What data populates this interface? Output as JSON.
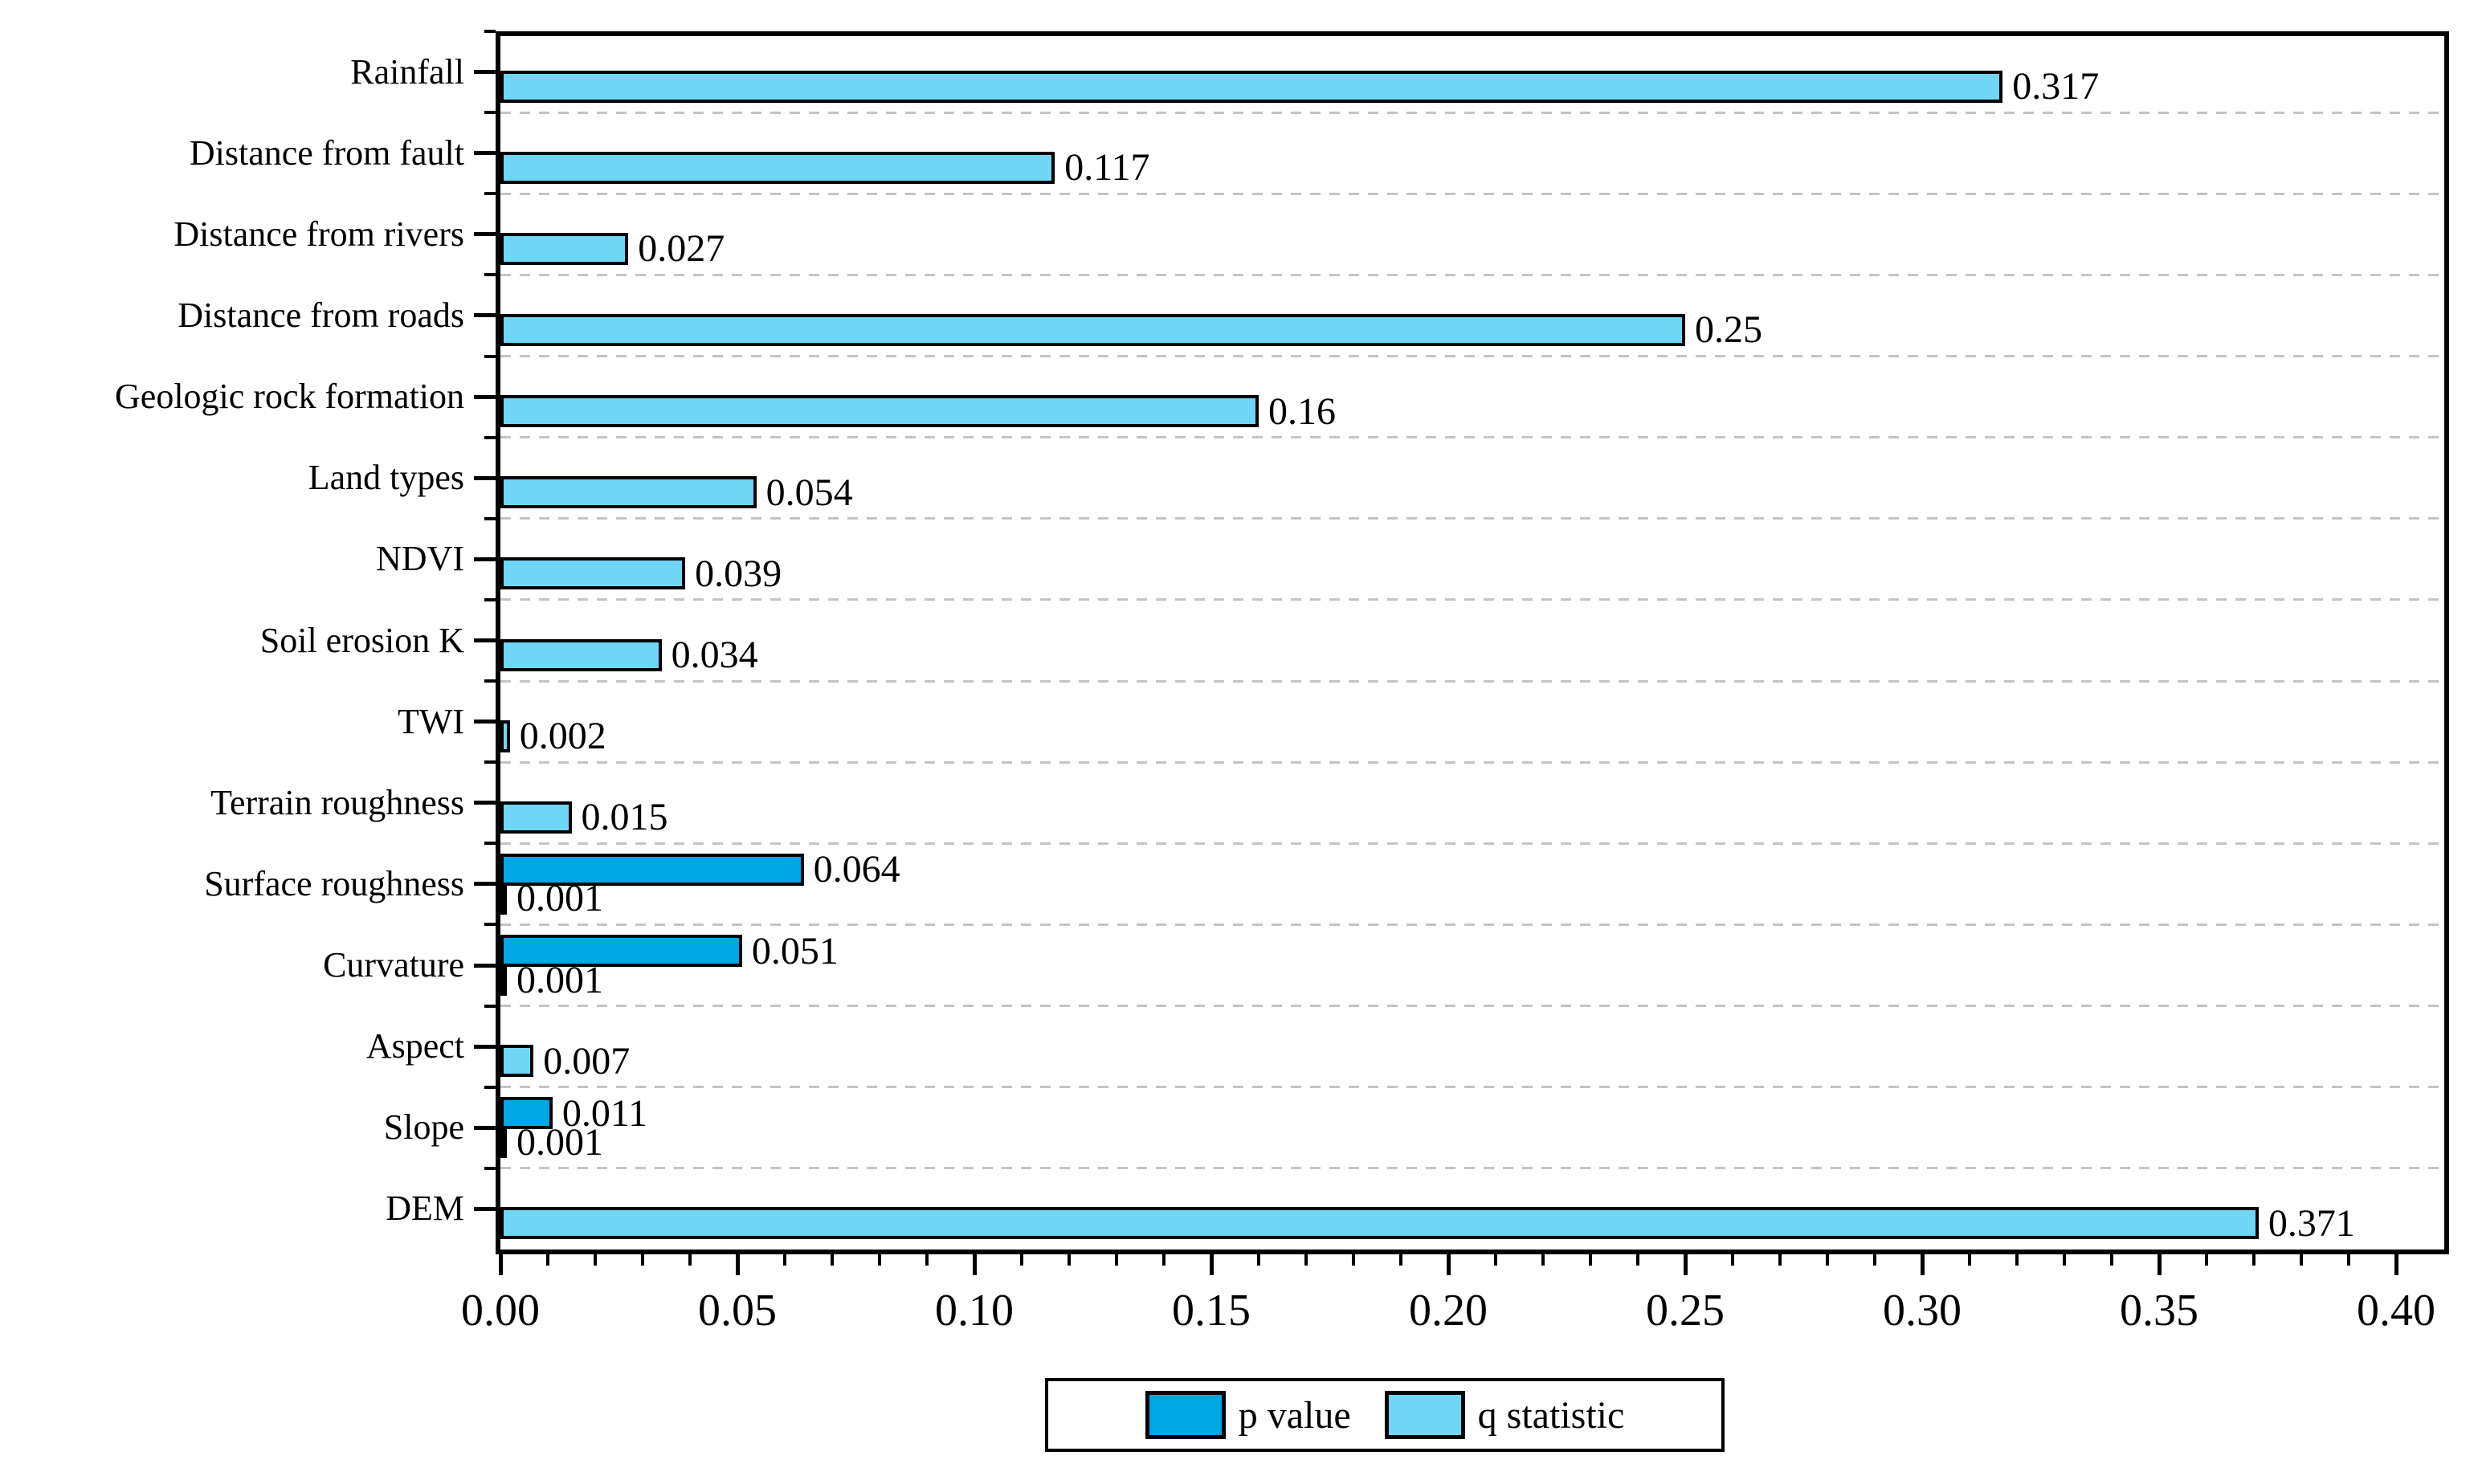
{
  "chart_data": {
    "type": "bar",
    "orientation": "horizontal",
    "title": "",
    "xlabel": "",
    "ylabel": "",
    "categories": [
      "Rainfall",
      "Distance from fault",
      "Distance from rivers",
      "Distance from roads",
      "Geologic rock formation",
      "Land types",
      "NDVI",
      "Soil erosion K",
      "TWI",
      "Terrain roughness",
      "Surface roughness",
      "Curvature",
      "Aspect",
      "Slope",
      "DEM"
    ],
    "series": [
      {
        "name": "p value",
        "color": "#00A7E7",
        "values": [
          null,
          null,
          null,
          null,
          null,
          null,
          null,
          null,
          null,
          null,
          0.064,
          0.051,
          null,
          0.011,
          null
        ],
        "labels": [
          null,
          null,
          null,
          null,
          null,
          null,
          null,
          null,
          null,
          null,
          "0.064",
          "0.051",
          null,
          "0.011",
          null
        ]
      },
      {
        "name": "q statistic",
        "color": "#70D6F6",
        "values": [
          0.317,
          0.117,
          0.027,
          0.25,
          0.16,
          0.054,
          0.039,
          0.034,
          0.002,
          0.015,
          0.001,
          0.001,
          0.007,
          0.001,
          0.371
        ],
        "labels": [
          "0.317",
          "0.117",
          "0.027",
          "0.25",
          "0.16",
          "0.054",
          "0.039",
          "0.034",
          "0.002",
          "0.015",
          "0.001",
          "0.001",
          "0.007",
          "0.001",
          "0.371"
        ]
      }
    ],
    "xlim": [
      0,
      0.4
    ],
    "x_tick_labels": [
      "0.00",
      "0.05",
      "0.10",
      "0.15",
      "0.20",
      "0.25",
      "0.30",
      "0.35",
      "0.40"
    ],
    "x_major_tick_step": 0.05,
    "x_minor_tick_step": 0.01,
    "grid": "horizontal dashed lines between categories",
    "gridline_color": "#C4C4C4",
    "bar_outline_color": "#000000",
    "axis_color": "#000000",
    "background": "#FFFFFF",
    "legend_position": "bottom center"
  }
}
